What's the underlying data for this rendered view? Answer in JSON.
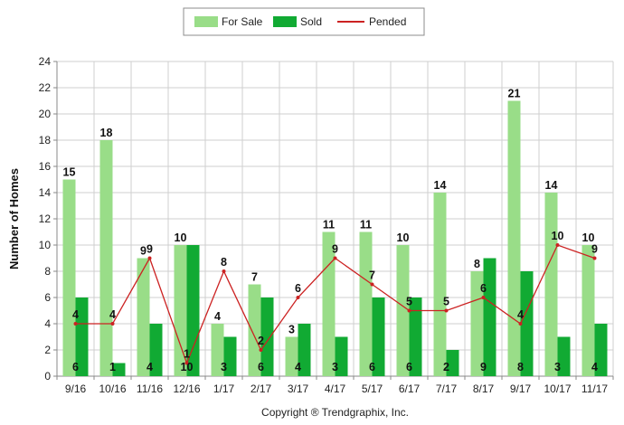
{
  "chart_data": {
    "type": "bar",
    "title": "",
    "xlabel": "",
    "ylabel": "Number of Homes",
    "ylim": [
      0,
      24
    ],
    "yticks": [
      0,
      2,
      4,
      6,
      8,
      10,
      12,
      14,
      16,
      18,
      20,
      22,
      24
    ],
    "grid": true,
    "legend_position": "top-center",
    "categories": [
      "9/16",
      "10/16",
      "11/16",
      "12/16",
      "1/17",
      "2/17",
      "3/17",
      "4/17",
      "5/17",
      "6/17",
      "7/17",
      "8/17",
      "9/17",
      "10/17",
      "11/17"
    ],
    "series": [
      {
        "name": "For Sale",
        "type": "bar",
        "color": "#99dd88",
        "values": [
          15,
          18,
          9,
          10,
          4,
          7,
          3,
          11,
          11,
          10,
          14,
          8,
          21,
          14,
          10
        ]
      },
      {
        "name": "Sold",
        "type": "bar",
        "color": "#11aa33",
        "values": [
          6,
          1,
          4,
          10,
          3,
          6,
          4,
          3,
          6,
          6,
          2,
          9,
          8,
          3,
          4
        ]
      },
      {
        "name": "Pended",
        "type": "line",
        "color": "#cc2222",
        "values": [
          4,
          4,
          9,
          1,
          8,
          2,
          6,
          9,
          7,
          5,
          5,
          6,
          4,
          10,
          9
        ]
      }
    ],
    "footer": "Copyright ® Trendgraphix, Inc."
  }
}
